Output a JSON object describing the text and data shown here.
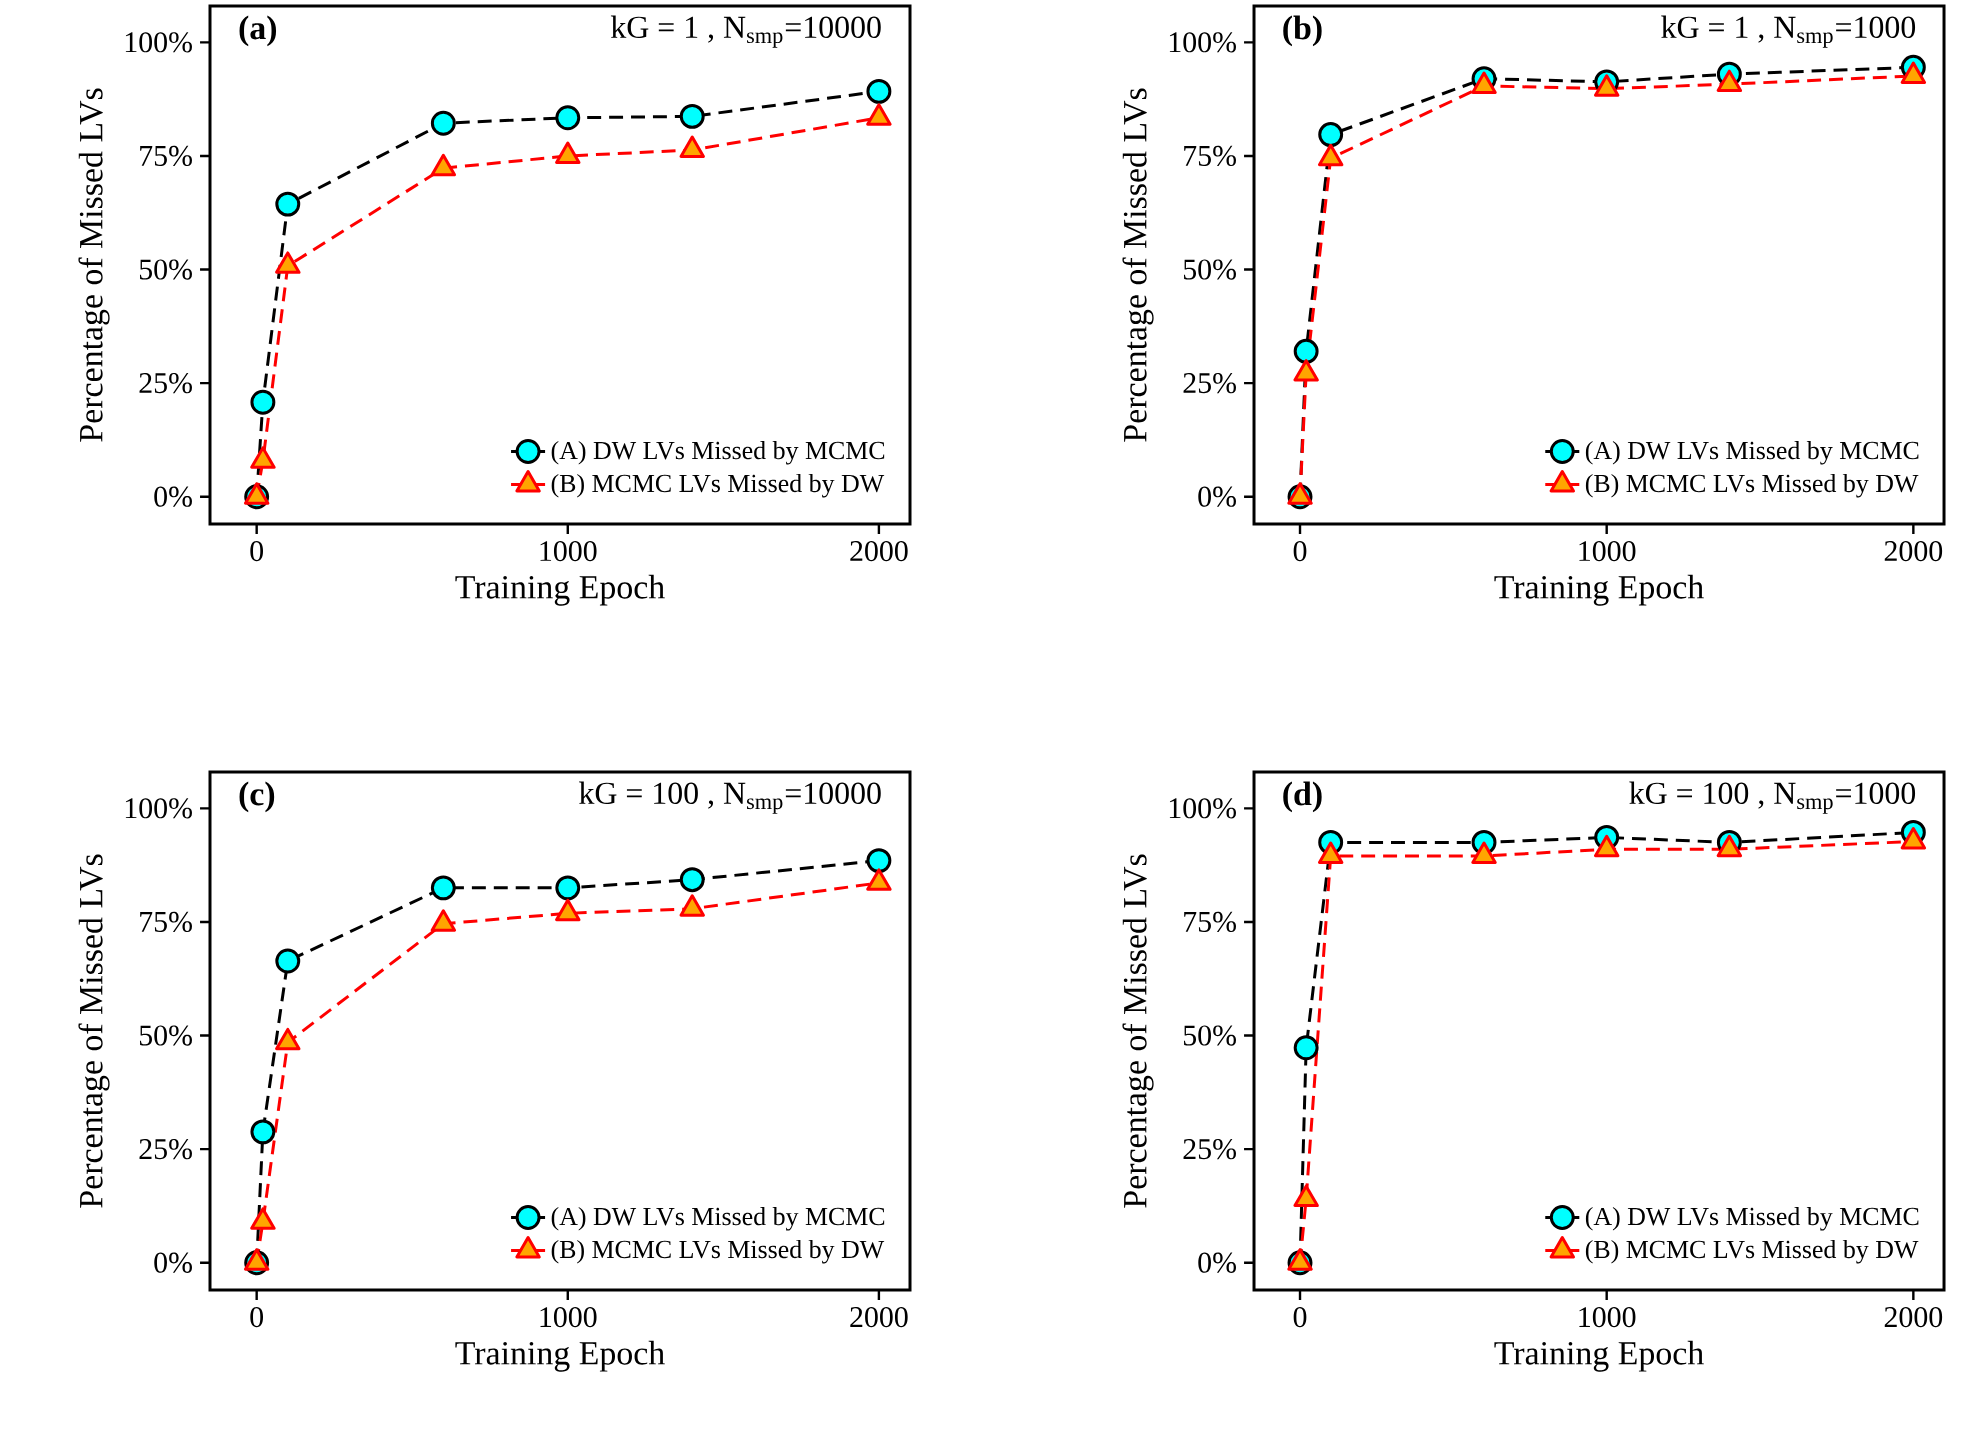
{
  "chart_data": [
    {
      "type": "line",
      "title": "(a)",
      "subtitle": "kG = 1 , N$_{smp}$=10000",
      "xlabel": "Training Epoch",
      "ylabel": "Percentage of Missed LVs",
      "x": [
        0,
        20,
        100,
        600,
        1000,
        1400,
        2000
      ],
      "xlim": [
        -150,
        2100
      ],
      "xticks": [
        0,
        1000,
        2000
      ],
      "ylim": [
        -6,
        108
      ],
      "yticks": [
        {
          "value": 0,
          "label": "0%"
        },
        {
          "value": 25,
          "label": "25%"
        },
        {
          "value": 50,
          "label": "50%"
        },
        {
          "value": 75,
          "label": "75%"
        },
        {
          "value": 100,
          "label": "100%"
        }
      ],
      "legend": "bottom right",
      "line_style": "dashed",
      "grid": false,
      "series": [
        {
          "name": "(A) DW LVs  Missed by MCMC",
          "color": "#00ffff",
          "marker": "circle",
          "values": [
            0,
            20.8,
            64.4,
            82.2,
            83.4,
            83.7,
            89.2
          ]
        },
        {
          "name": "(B) MCMC LVs Missed by DW",
          "color": "#ffa500",
          "marker": "triangle",
          "values": [
            0,
            7.9,
            50.8,
            72.3,
            75,
            76.3,
            83.4
          ]
        }
      ]
    },
    {
      "type": "line",
      "title": "(b)",
      "subtitle": "kG = 1 , N$_{smp}$=1000",
      "xlabel": "Training Epoch",
      "ylabel": "Percentage of Missed LVs",
      "x": [
        0,
        20,
        100,
        600,
        1000,
        1400,
        2000
      ],
      "xlim": [
        -150,
        2100
      ],
      "xticks": [
        0,
        1000,
        2000
      ],
      "ylim": [
        -6,
        108
      ],
      "yticks": [
        {
          "value": 0,
          "label": "0%"
        },
        {
          "value": 25,
          "label": "25%"
        },
        {
          "value": 50,
          "label": "50%"
        },
        {
          "value": 75,
          "label": "75%"
        },
        {
          "value": 100,
          "label": "100%"
        }
      ],
      "legend": "bottom right",
      "line_style": "dashed",
      "grid": false,
      "series": [
        {
          "name": "(A) DW LVs  Missed by MCMC",
          "color": "#00ffff",
          "marker": "circle",
          "values": [
            0,
            32,
            79.7,
            92,
            91.3,
            93,
            94.5
          ]
        },
        {
          "name": "(B) MCMC LVs Missed by DW",
          "color": "#ffa500",
          "marker": "triangle",
          "values": [
            0,
            27.1,
            74.5,
            90.4,
            89.8,
            90.8,
            92.6
          ]
        }
      ]
    },
    {
      "type": "line",
      "title": "(c)",
      "subtitle": "kG = 100 , N$_{smp}$=10000",
      "xlabel": "Training Epoch",
      "ylabel": "Percentage of Missed LVs",
      "x": [
        0,
        20,
        100,
        600,
        1000,
        1400,
        2000
      ],
      "xlim": [
        -150,
        2100
      ],
      "xticks": [
        0,
        1000,
        2000
      ],
      "ylim": [
        -6,
        108
      ],
      "yticks": [
        {
          "value": 0,
          "label": "0%"
        },
        {
          "value": 25,
          "label": "25%"
        },
        {
          "value": 50,
          "label": "50%"
        },
        {
          "value": 75,
          "label": "75%"
        },
        {
          "value": 100,
          "label": "100%"
        }
      ],
      "legend": "bottom right",
      "line_style": "dashed",
      "grid": false,
      "series": [
        {
          "name": "(A) DW LVs Missed by MCMC",
          "color": "#00ffff",
          "marker": "circle",
          "values": [
            0,
            28.8,
            66.4,
            82.5,
            82.5,
            84.3,
            88.5
          ]
        },
        {
          "name": "(B) MCMC LVs Missed by DW",
          "color": "#ffa500",
          "marker": "triangle",
          "values": [
            0,
            9,
            48.5,
            74.6,
            76.9,
            77.9,
            83.6
          ]
        }
      ]
    },
    {
      "type": "line",
      "title": "(d)",
      "subtitle": "kG = 100 , N$_{smp}$=1000",
      "xlabel": "Training Epoch",
      "ylabel": "Percentage of Missed LVs",
      "x": [
        0,
        20,
        100,
        600,
        1000,
        1400,
        2000
      ],
      "xlim": [
        -150,
        2100
      ],
      "xticks": [
        0,
        1000,
        2000
      ],
      "ylim": [
        -6,
        108
      ],
      "yticks": [
        {
          "value": 0,
          "label": "0%"
        },
        {
          "value": 25,
          "label": "25%"
        },
        {
          "value": 50,
          "label": "50%"
        },
        {
          "value": 75,
          "label": "75%"
        },
        {
          "value": 100,
          "label": "100%"
        }
      ],
      "legend": "bottom right",
      "line_style": "dashed",
      "grid": false,
      "series": [
        {
          "name": "(A) DW LVs  Missed by MCMC",
          "color": "#00ffff",
          "marker": "circle",
          "values": [
            0,
            47.3,
            92.5,
            92.5,
            93.6,
            92.5,
            94.7
          ]
        },
        {
          "name": "(B) MCMC LVs Missed by DW",
          "color": "#ffa500",
          "marker": "triangle",
          "values": [
            0,
            14,
            89.5,
            89.5,
            91,
            91,
            92.7
          ]
        }
      ]
    }
  ]
}
